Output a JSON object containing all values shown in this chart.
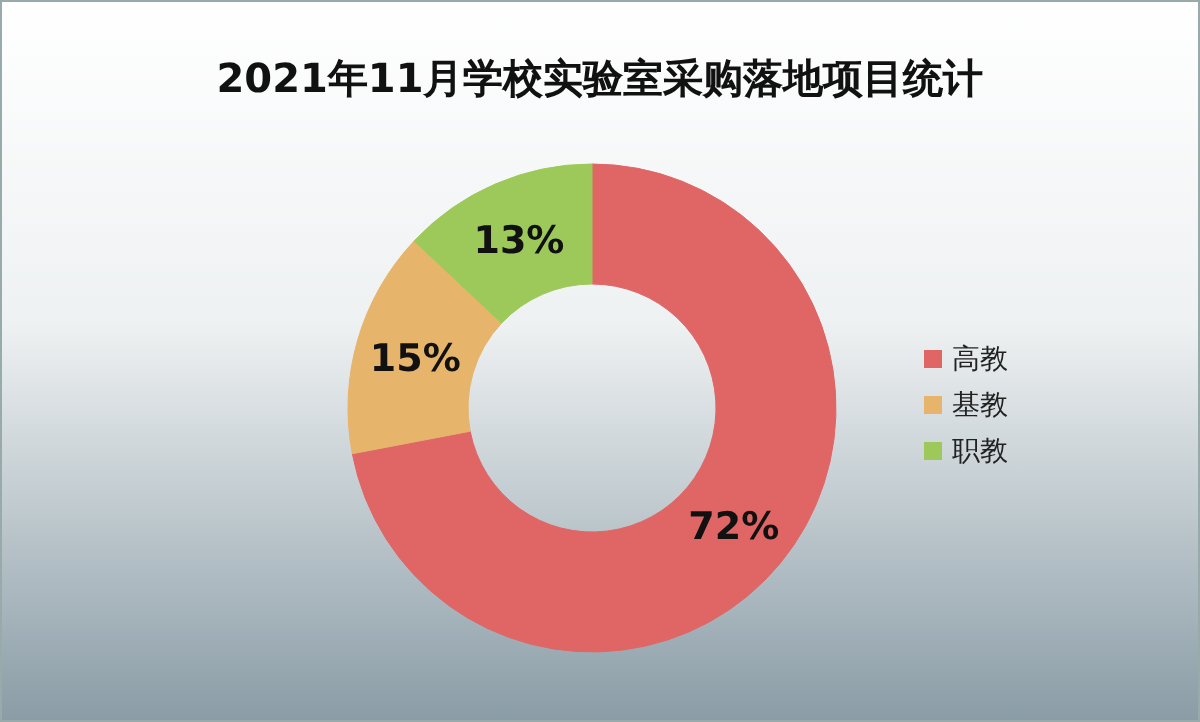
{
  "chart_data": {
    "type": "donut",
    "title": "2021年11月学校实验室采购落地项目统计",
    "categories": [
      "高教",
      "基教",
      "职教"
    ],
    "values": [
      72,
      15,
      13
    ],
    "colors": [
      "#e06666",
      "#e6b46a",
      "#9cc95a"
    ],
    "value_labels": [
      "72%",
      "15%",
      "13%"
    ],
    "legend": "right"
  }
}
